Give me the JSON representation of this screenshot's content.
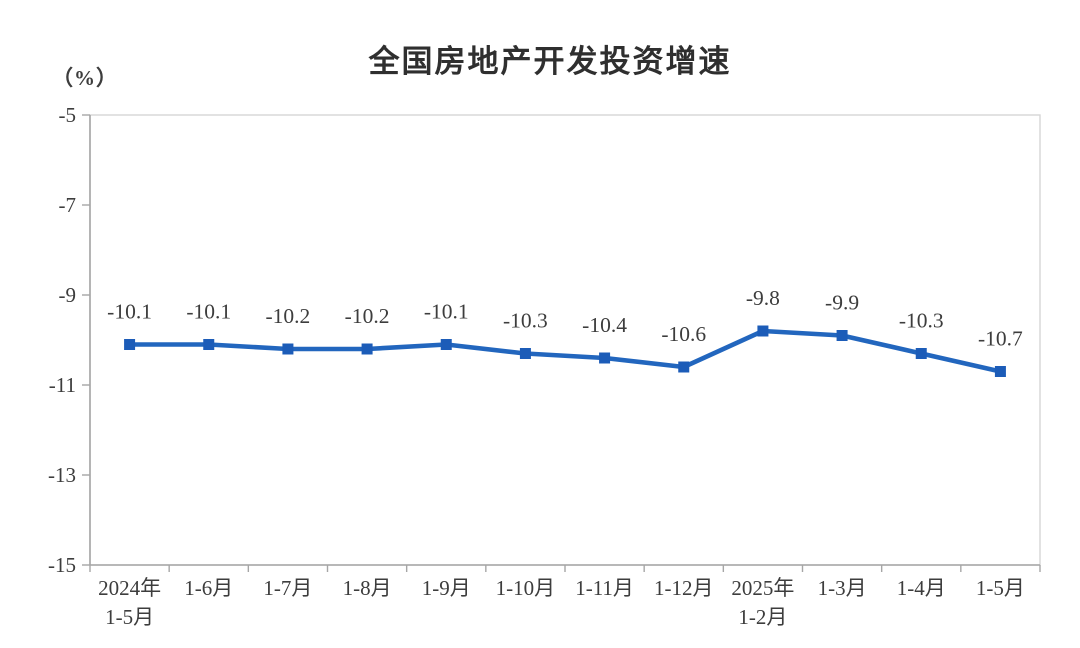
{
  "title": "全国房地产开发投资增速",
  "unit_label": "（%）",
  "colors": {
    "line": "#2266be",
    "marker": "#1c5cb8",
    "label_text": "#3d3d3d",
    "tick_text": "#3d3d3d",
    "axis": "#a6a6a6",
    "plot_border": "#d6d6d6",
    "background": "#ffffff",
    "title_text": "#2f2f2f"
  },
  "chart_data": {
    "type": "line",
    "title": "全国房地产开发投资增速",
    "ylabel": "（%）",
    "xlabel": "",
    "categories": [
      "2024年\n1-5月",
      "1-6月",
      "1-7月",
      "1-8月",
      "1-9月",
      "1-10月",
      "1-11月",
      "1-12月",
      "2025年\n1-2月",
      "1-3月",
      "1-4月",
      "1-5月"
    ],
    "values": [
      -10.1,
      -10.1,
      -10.2,
      -10.2,
      -10.1,
      -10.3,
      -10.4,
      -10.6,
      -9.8,
      -9.9,
      -10.3,
      -10.7
    ],
    "data_labels": [
      "-10.1",
      "-10.1",
      "-10.2",
      "-10.2",
      "-10.1",
      "-10.3",
      "-10.4",
      "-10.6",
      "-9.8",
      "-9.9",
      "-10.3",
      "-10.7"
    ],
    "ylim": [
      -15,
      -5
    ],
    "yticks": [
      -5,
      -7,
      -9,
      -11,
      -13,
      -15
    ],
    "ytick_labels": [
      "-5",
      "-7",
      "-9",
      "-11",
      "-13",
      "-15"
    ],
    "grid": false,
    "legend": "none",
    "marker_shape": "square"
  }
}
